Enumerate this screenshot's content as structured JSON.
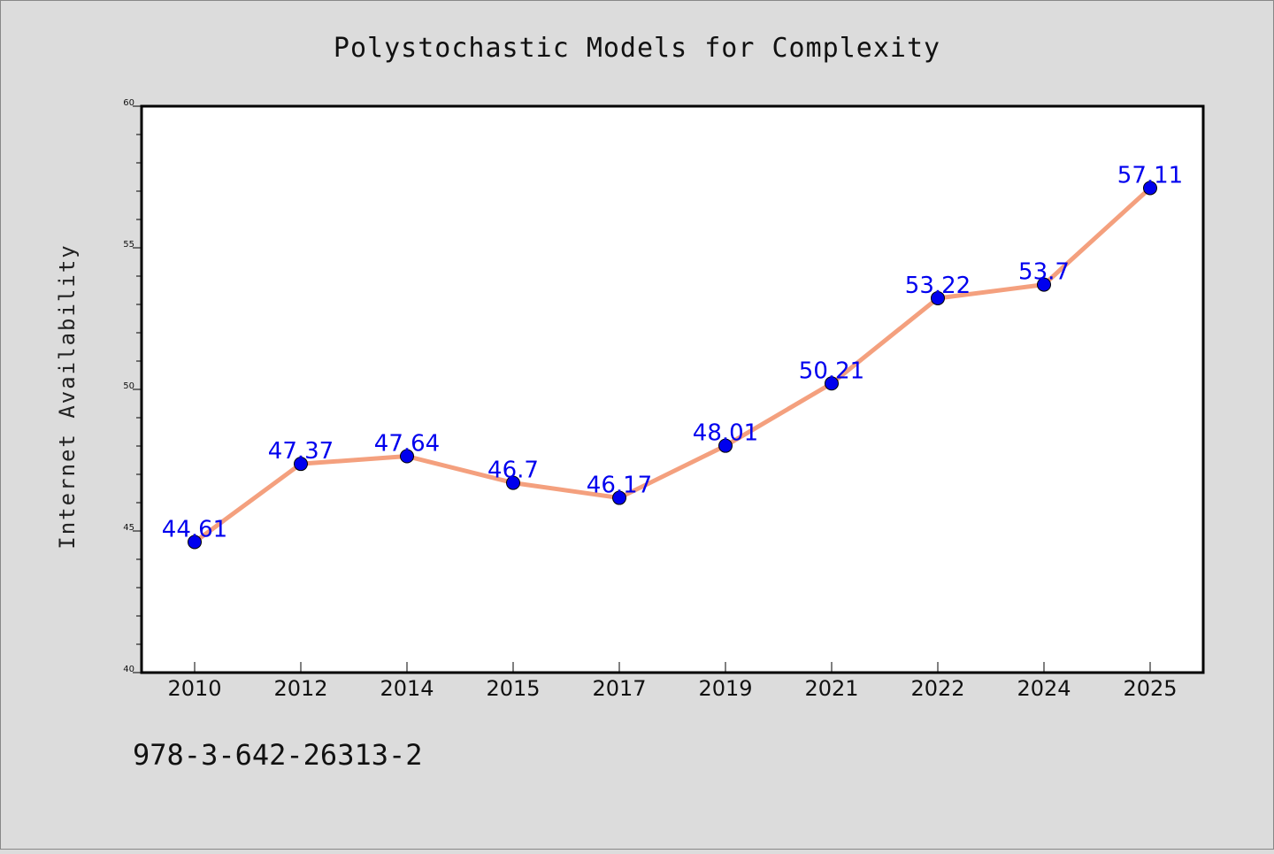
{
  "chart_data": {
    "type": "line",
    "title": "Polystochastic Models for Complexity",
    "xlabel": "",
    "ylabel": "Internet Availability",
    "categories": [
      "2010",
      "2012",
      "2014",
      "2015",
      "2017",
      "2019",
      "2021",
      "2022",
      "2024",
      "2025"
    ],
    "series": [
      {
        "values": [
          44.61,
          47.37,
          47.64,
          46.7,
          46.17,
          48.01,
          50.21,
          53.22,
          53.7,
          57.11
        ],
        "labels": [
          "44.61",
          "47.37",
          "47.64",
          "46.7",
          "46.17",
          "48.01",
          "50.21",
          "53.22",
          "53.7",
          "57.11"
        ],
        "line_color": "#f4a07e",
        "marker_color": "#0000ee"
      }
    ],
    "ylim": [
      40,
      60
    ],
    "yticks": [
      "40",
      "45",
      "50",
      "55",
      "60"
    ],
    "grid": false,
    "legend": "none",
    "label_color": "#0000ee"
  },
  "footer_text": "978-3-642-26313-2",
  "colors": {
    "background": "#dcdcdc",
    "plot_area": "#ffffff",
    "line": "#f4a07e",
    "marker": "#0000ee",
    "data_label": "#0000ee"
  }
}
